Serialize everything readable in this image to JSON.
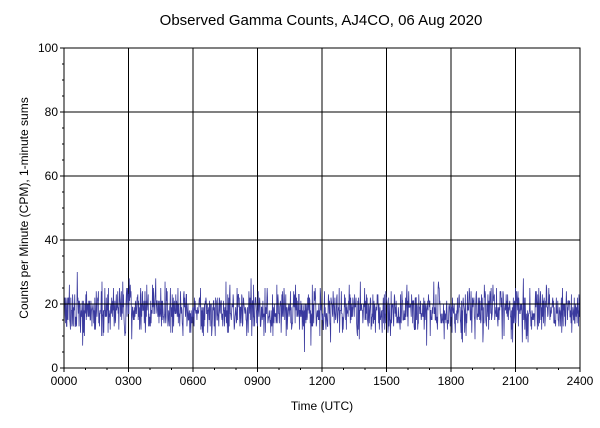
{
  "chart_data": {
    "type": "line",
    "title": "Observed Gamma Counts, AJ4CO, 06 Aug 2020",
    "xlabel": "Time (UTC)",
    "ylabel": "Counts per Minute (CPM), 1-minute sums",
    "x_unit": "minutes UTC",
    "xlim": [
      0,
      1440
    ],
    "ylim": [
      0,
      100
    ],
    "x_ticks": [
      {
        "value": 0,
        "label": "0000"
      },
      {
        "value": 180,
        "label": "0300"
      },
      {
        "value": 360,
        "label": "0600"
      },
      {
        "value": 540,
        "label": "0900"
      },
      {
        "value": 720,
        "label": "1200"
      },
      {
        "value": 900,
        "label": "1500"
      },
      {
        "value": 1080,
        "label": "1800"
      },
      {
        "value": 1260,
        "label": "2100"
      },
      {
        "value": 1440,
        "label": "2400"
      }
    ],
    "y_ticks": [
      {
        "value": 0,
        "label": "0"
      },
      {
        "value": 20,
        "label": "20"
      },
      {
        "value": 40,
        "label": "40"
      },
      {
        "value": 60,
        "label": "60"
      },
      {
        "value": 80,
        "label": "80"
      },
      {
        "value": 100,
        "label": "100"
      }
    ],
    "grid": true,
    "reference_line": {
      "value": 20,
      "color": "#000000"
    },
    "series": [
      {
        "color": "#3a3a9e",
        "sample_interval_min": 1,
        "mean": 18,
        "min": 4,
        "max": 34,
        "approx_std": 3.8
      }
    ]
  }
}
